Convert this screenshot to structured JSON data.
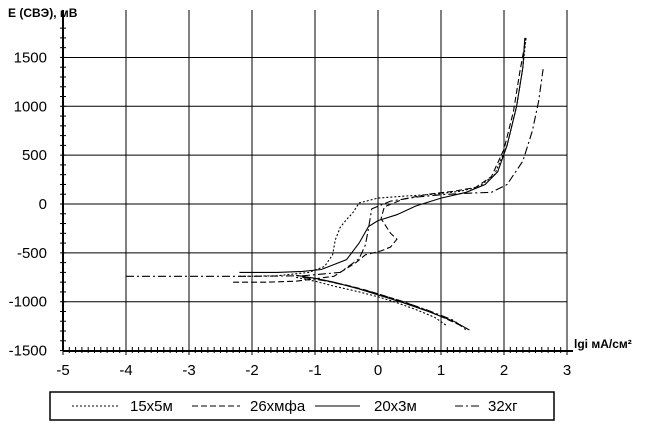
{
  "chart_data": {
    "type": "line",
    "ylabel": "E (СВЭ),  мВ",
    "xlabel": "lgi мА/см²",
    "xlim": [
      -5,
      3
    ],
    "ylim": [
      -1500,
      1800
    ],
    "x_ticks": [
      "-5",
      "-4",
      "-3",
      "-2",
      "-1",
      "0",
      "1",
      "2",
      "3"
    ],
    "y_ticks": [
      "1500",
      "1000",
      "500",
      "0",
      "-500",
      "-1000",
      "-1500"
    ],
    "grid": "on",
    "legend_position": "bottom",
    "series": [
      {
        "name": "15х5м",
        "style": "dotted",
        "anodic": [
          [
            -2.2,
            -740
          ],
          [
            -1.6,
            -735
          ],
          [
            -1.1,
            -700
          ],
          [
            -0.85,
            -640
          ],
          [
            -0.72,
            -520
          ],
          [
            -0.68,
            -370
          ],
          [
            -0.6,
            -240
          ],
          [
            -0.5,
            -160
          ],
          [
            -0.4,
            -90
          ],
          [
            -0.3,
            10
          ],
          [
            0.0,
            60
          ],
          [
            0.4,
            80
          ],
          [
            0.9,
            100
          ],
          [
            1.3,
            130
          ],
          [
            1.6,
            175
          ],
          [
            1.85,
            300
          ],
          [
            2.05,
            600
          ],
          [
            2.2,
            1000
          ],
          [
            2.3,
            1400
          ],
          [
            2.35,
            1700
          ]
        ],
        "cathodic": [
          [
            -1.3,
            -750
          ],
          [
            -1.0,
            -790
          ],
          [
            -0.7,
            -840
          ],
          [
            -0.3,
            -900
          ],
          [
            0.0,
            -950
          ],
          [
            0.3,
            -1010
          ],
          [
            0.6,
            -1080
          ],
          [
            0.9,
            -1160
          ],
          [
            1.1,
            -1250
          ]
        ]
      },
      {
        "name": "26хмфа",
        "style": "dashed",
        "anodic": [
          [
            -2.3,
            -800
          ],
          [
            -1.8,
            -800
          ],
          [
            -1.3,
            -790
          ],
          [
            -0.7,
            -740
          ],
          [
            -0.35,
            -600
          ],
          [
            -0.2,
            -520
          ],
          [
            0.05,
            -480
          ],
          [
            0.2,
            -440
          ],
          [
            0.3,
            -360
          ],
          [
            0.2,
            -300
          ],
          [
            0.05,
            -150
          ],
          [
            0.1,
            -30
          ],
          [
            0.4,
            50
          ],
          [
            0.8,
            100
          ],
          [
            1.2,
            130
          ],
          [
            1.55,
            170
          ],
          [
            1.8,
            280
          ],
          [
            2.0,
            560
          ],
          [
            2.15,
            950
          ],
          [
            2.25,
            1350
          ],
          [
            2.35,
            1700
          ]
        ],
        "cathodic": [
          [
            -0.8,
            -790
          ],
          [
            -0.5,
            -830
          ],
          [
            -0.2,
            -880
          ],
          [
            0.1,
            -940
          ],
          [
            0.4,
            -1000
          ],
          [
            0.7,
            -1070
          ],
          [
            1.0,
            -1150
          ],
          [
            1.3,
            -1240
          ]
        ]
      },
      {
        "name": "20х3м",
        "style": "solid",
        "anodic": [
          [
            -2.2,
            -700
          ],
          [
            -1.6,
            -700
          ],
          [
            -1.2,
            -690
          ],
          [
            -0.9,
            -670
          ],
          [
            -0.5,
            -570
          ],
          [
            -0.3,
            -400
          ],
          [
            -0.15,
            -230
          ],
          [
            0.0,
            -170
          ],
          [
            0.3,
            -110
          ],
          [
            0.6,
            -20
          ],
          [
            1.0,
            60
          ],
          [
            1.4,
            120
          ],
          [
            1.7,
            200
          ],
          [
            1.9,
            330
          ],
          [
            2.05,
            600
          ],
          [
            2.2,
            1000
          ],
          [
            2.3,
            1400
          ],
          [
            2.33,
            1700
          ]
        ],
        "cathodic": [
          [
            -1.3,
            -730
          ],
          [
            -1.0,
            -760
          ],
          [
            -0.7,
            -800
          ],
          [
            -0.3,
            -870
          ],
          [
            0.0,
            -930
          ],
          [
            0.4,
            -1010
          ],
          [
            0.8,
            -1100
          ],
          [
            1.2,
            -1200
          ],
          [
            1.45,
            -1290
          ]
        ]
      },
      {
        "name": "32хг",
        "style": "dash-dot",
        "anodic": [
          [
            -4.0,
            -740
          ],
          [
            -3.0,
            -740
          ],
          [
            -2.0,
            -740
          ],
          [
            -1.2,
            -735
          ],
          [
            -0.6,
            -700
          ],
          [
            -0.3,
            -560
          ],
          [
            -0.2,
            -420
          ],
          [
            -0.15,
            -250
          ],
          [
            -0.1,
            -50
          ],
          [
            0.2,
            30
          ],
          [
            0.6,
            70
          ],
          [
            1.0,
            95
          ],
          [
            1.4,
            110
          ],
          [
            1.8,
            120
          ],
          [
            2.05,
            200
          ],
          [
            2.3,
            440
          ],
          [
            2.45,
            750
          ],
          [
            2.55,
            1050
          ],
          [
            2.62,
            1380
          ]
        ],
        "cathodic": [
          [
            -1.2,
            -750
          ],
          [
            -0.8,
            -790
          ],
          [
            -0.4,
            -850
          ],
          [
            0.0,
            -920
          ],
          [
            0.4,
            -1000
          ],
          [
            0.8,
            -1090
          ],
          [
            1.2,
            -1190
          ],
          [
            1.4,
            -1290
          ]
        ]
      }
    ]
  }
}
